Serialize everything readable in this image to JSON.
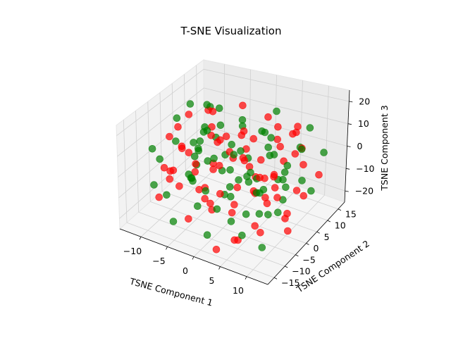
{
  "chart_data": {
    "type": "scatter",
    "projection": "3d",
    "title": "T-SNE Visualization",
    "xlabel": "TSNE Component 1",
    "ylabel": "TSNE Component 2",
    "zlabel": "TSNE Component 3",
    "xlim": [
      -14,
      14
    ],
    "ylim": [
      -18,
      18
    ],
    "zlim": [
      -25,
      25
    ],
    "x_ticks": [
      "−10",
      "−5",
      "0",
      "5",
      "10"
    ],
    "x_tick_values": [
      -10,
      -5,
      0,
      5,
      10
    ],
    "y_ticks": [
      "−15",
      "−10",
      "−5",
      "0",
      "5",
      "10",
      "15"
    ],
    "y_tick_values": [
      -15,
      -10,
      -5,
      0,
      5,
      10,
      15
    ],
    "z_ticks": [
      "−20",
      "−10",
      "0",
      "10",
      "20"
    ],
    "z_tick_values": [
      -20,
      -10,
      0,
      10,
      20
    ],
    "grid": true,
    "legend": "none",
    "series": [
      {
        "color": "#ff0000",
        "alpha": 0.7,
        "points": [
          [
            -8,
            -6,
            18
          ],
          [
            -5,
            2,
            20
          ],
          [
            -2,
            8,
            19
          ],
          [
            3,
            -3,
            21
          ],
          [
            6,
            5,
            17
          ],
          [
            9,
            -1,
            16
          ],
          [
            -10,
            3,
            14
          ],
          [
            -6,
            -9,
            13
          ],
          [
            -1,
            -4,
            15
          ],
          [
            2,
            10,
            14
          ],
          [
            5,
            -8,
            15
          ],
          [
            8,
            7,
            13
          ],
          [
            11,
            1,
            12
          ],
          [
            -9,
            9,
            11
          ],
          [
            -4,
            -1,
            12
          ],
          [
            0,
            3,
            11
          ],
          [
            4,
            -5,
            10
          ],
          [
            7,
            11,
            9
          ],
          [
            10,
            -6,
            9
          ],
          [
            -11,
            -3,
            8
          ],
          [
            -7,
            6,
            7
          ],
          [
            -3,
            -10,
            8
          ],
          [
            1,
            6,
            7
          ],
          [
            5,
            0,
            6
          ],
          [
            9,
            9,
            5
          ],
          [
            -8,
            -12,
            4
          ],
          [
            -5,
            4,
            3
          ],
          [
            -1,
            -7,
            4
          ],
          [
            3,
            12,
            2
          ],
          [
            7,
            -3,
            2
          ],
          [
            11,
            5,
            3
          ],
          [
            -10,
            0,
            0
          ],
          [
            -6,
            10,
            -1
          ],
          [
            -2,
            -2,
            0
          ],
          [
            2,
            -11,
            -1
          ],
          [
            6,
            8,
            -2
          ],
          [
            10,
            -9,
            -1
          ],
          [
            -9,
            -6,
            -4
          ],
          [
            -4,
            7,
            -4
          ],
          [
            0,
            -13,
            -3
          ],
          [
            4,
            2,
            -5
          ],
          [
            8,
            -5,
            -4
          ],
          [
            12,
            10,
            -6
          ],
          [
            -11,
            5,
            -8
          ],
          [
            -7,
            -8,
            -8
          ],
          [
            -3,
            12,
            -7
          ],
          [
            1,
            -1,
            -9
          ],
          [
            5,
            6,
            -8
          ],
          [
            9,
            -12,
            -9
          ],
          [
            -8,
            1,
            -11
          ],
          [
            -5,
            -4,
            -12
          ],
          [
            -1,
            9,
            -11
          ],
          [
            3,
            -8,
            -12
          ],
          [
            7,
            3,
            -13
          ],
          [
            11,
            -2,
            -12
          ],
          [
            -10,
            -10,
            -14
          ],
          [
            -6,
            13,
            -15
          ],
          [
            -2,
            -6,
            -14
          ],
          [
            2,
            4,
            -15
          ],
          [
            6,
            -14,
            -16
          ],
          [
            10,
            8,
            -15
          ],
          [
            -9,
            11,
            -18
          ],
          [
            -4,
            -11,
            -18
          ],
          [
            0,
            0,
            -19
          ],
          [
            4,
            9,
            -17
          ],
          [
            8,
            -7,
            -18
          ],
          [
            -7,
            3,
            -20
          ],
          [
            -3,
            -3,
            -21
          ],
          [
            1,
            7,
            -20
          ],
          [
            5,
            -10,
            -21
          ],
          [
            9,
            2,
            -20
          ],
          [
            -2,
            14,
            -22
          ],
          [
            3,
            -15,
            -22
          ],
          [
            7,
            12,
            -19
          ],
          [
            -12,
            -1,
            -16
          ],
          [
            12,
            -4,
            -17
          ],
          [
            -6,
            -14,
            6
          ],
          [
            6,
            14,
            8
          ]
        ]
      },
      {
        "color": "#008000",
        "alpha": 0.7,
        "points": [
          [
            -7,
            4,
            20
          ],
          [
            -3,
            -5,
            19
          ],
          [
            1,
            1,
            21
          ],
          [
            4,
            9,
            19
          ],
          [
            8,
            -4,
            18
          ],
          [
            -10,
            -2,
            17
          ],
          [
            -6,
            7,
            16
          ],
          [
            -2,
            -11,
            16
          ],
          [
            2,
            -6,
            17
          ],
          [
            6,
            2,
            15
          ],
          [
            10,
            10,
            14
          ],
          [
            -12,
            8,
            13
          ],
          [
            -8,
            -7,
            12
          ],
          [
            -4,
            3,
            13
          ],
          [
            0,
            -9,
            12
          ],
          [
            3,
            5,
            13
          ],
          [
            7,
            -11,
            11
          ],
          [
            11,
            4,
            11
          ],
          [
            -10,
            12,
            9
          ],
          [
            -6,
            -4,
            10
          ],
          [
            -2,
            8,
            9
          ],
          [
            2,
            -2,
            10
          ],
          [
            6,
            -7,
            8
          ],
          [
            10,
            0,
            7
          ],
          [
            -12,
            -8,
            6
          ],
          [
            -7,
            1,
            5
          ],
          [
            -3,
            -13,
            6
          ],
          [
            1,
            11,
            5
          ],
          [
            5,
            4,
            4
          ],
          [
            9,
            -10,
            4
          ],
          [
            -9,
            7,
            2
          ],
          [
            -5,
            -5,
            1
          ],
          [
            -1,
            2,
            2
          ],
          [
            3,
            -9,
            1
          ],
          [
            7,
            13,
            0
          ],
          [
            11,
            -3,
            1
          ],
          [
            -12,
            -5,
            -2
          ],
          [
            -8,
            10,
            -3
          ],
          [
            -4,
            -9,
            -2
          ],
          [
            0,
            6,
            -3
          ],
          [
            4,
            -3,
            -2
          ],
          [
            8,
            3,
            -4
          ],
          [
            -10,
            -12,
            -6
          ],
          [
            -6,
            2,
            -5
          ],
          [
            -2,
            -8,
            -6
          ],
          [
            2,
            13,
            -7
          ],
          [
            6,
            -1,
            -6
          ],
          [
            10,
            7,
            -7
          ],
          [
            -11,
            9,
            -10
          ],
          [
            -7,
            -3,
            -9
          ],
          [
            -3,
            5,
            -10
          ],
          [
            1,
            -10,
            -10
          ],
          [
            5,
            11,
            -11
          ],
          [
            9,
            -6,
            -10
          ],
          [
            -9,
            -9,
            -13
          ],
          [
            -5,
            6,
            -13
          ],
          [
            -1,
            -2,
            -13
          ],
          [
            3,
            3,
            -14
          ],
          [
            7,
            -13,
            -14
          ],
          [
            11,
            9,
            -13
          ],
          [
            -8,
            14,
            -16
          ],
          [
            -4,
            -7,
            -16
          ],
          [
            0,
            10,
            -17
          ],
          [
            4,
            -4,
            -16
          ],
          [
            8,
            1,
            -17
          ],
          [
            -10,
            4,
            -19
          ],
          [
            -6,
            -13,
            -19
          ],
          [
            -2,
            3,
            -20
          ],
          [
            2,
            -6,
            -19
          ],
          [
            6,
            8,
            -20
          ],
          [
            10,
            -11,
            -19
          ],
          [
            -4,
            11,
            -22
          ],
          [
            0,
            -12,
            -21
          ],
          [
            4,
            2,
            -22
          ],
          [
            -1,
            -15,
            18
          ],
          [
            2,
            15,
            -21
          ],
          [
            12,
            12,
            2
          ],
          [
            -12,
            14,
            -5
          ]
        ]
      }
    ]
  }
}
